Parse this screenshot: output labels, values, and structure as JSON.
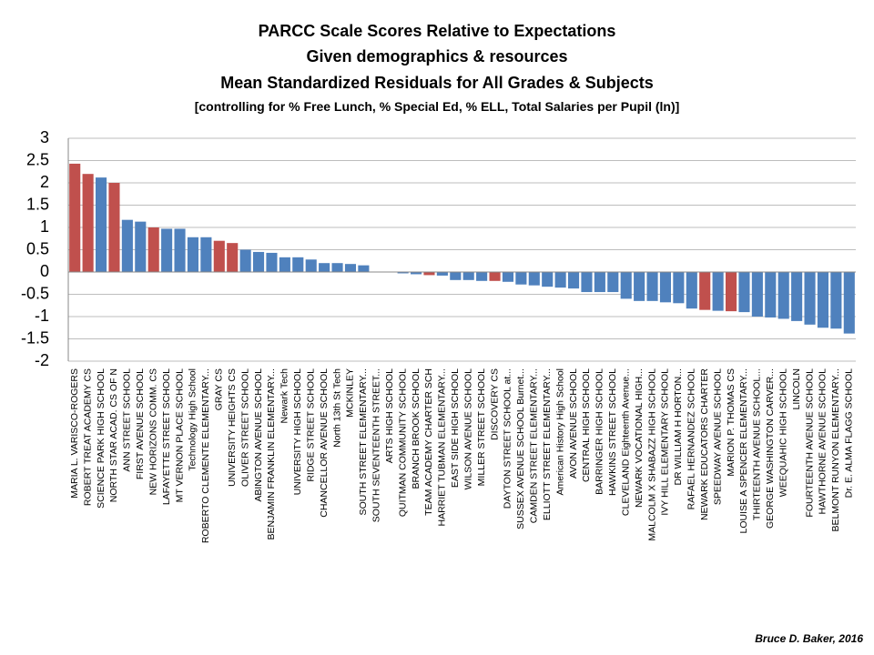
{
  "chart_data": {
    "type": "bar",
    "title_lines": [
      "PARCC Scale Scores Relative to Expectations",
      "Given demographics & resources",
      "Mean Standardized Residuals for All Grades & Subjects",
      "[controlling for % Free Lunch, % Special Ed, % ELL, Total Salaries per Pupil (ln)]"
    ],
    "footer": "Bruce D. Baker, 2016",
    "categories": [
      "MARIA L. VARISCO-ROGERS",
      "ROBERT TREAT ACADEMY CS",
      "SCIENCE PARK HIGH SCHOOL",
      "NORTH STAR ACAD. CS OF N",
      "ANN STREET SCHOOL",
      "FIRST AVENUE SCHOOL",
      "NEW HORIZONS COMM. CS",
      "LAFAYETTE STREET SCHOOL",
      "MT VERNON PLACE SCHOOL",
      "Technology High School",
      "ROBERTO CLEMENTE ELEMENTARY...",
      "GRAY CS",
      "UNIVERSITY HEIGHTS CS",
      "OLIVER STREET SCHOOL",
      "ABINGTON AVENUE SCHOOL",
      "BENJAMIN FRANKLIN ELEMENTARY...",
      "Newark Tech",
      "UNIVERSITY HIGH SCHOOL",
      "RIDGE STREET SCHOOL",
      "CHANCELLOR AVENUE SCHOOL",
      "North 13th St Tech",
      "MCKINLEY",
      "SOUTH STREET ELEMENTARY...",
      "SOUTH SEVENTEENTH STREET...",
      "ARTS HIGH SCHOOL",
      "QUITMAN COMMUNITY SCHOOL",
      "BRANCH BROOK SCHOOL",
      "TEAM ACADEMY CHARTER SCH",
      "HARRIET TUBMAN ELEMENTARY...",
      "EAST SIDE HIGH SCHOOL",
      "WILSON AVENUE SCHOOL",
      "MILLER STREET SCHOOL",
      "DISCOVERY CS",
      "DAYTON STREET SCHOOL at...",
      "SUSSEX AVENUE SCHOOL Burnet...",
      "CAMDEN STREET ELEMENTARY...",
      "ELLIOTT STREET ELEMENTARY...",
      "American History High School",
      "AVON AVENUE SCHOOL",
      "CENTRAL HIGH SCHOOL",
      "BARRINGER HIGH SCHOOL",
      "HAWKINS STREET SCHOOL",
      "CLEVELAND Eighteenth Avenue...",
      "NEWARK VOCATIONAL HIGH...",
      "MALCOLM X SHABAZZ HIGH SCHOOL",
      "IVY HILL ELEMENTARY SCHOOL",
      "DR WILLIAM H HORTON...",
      "RAFAEL HERNANDEZ SCHOOL",
      "NEWARK EDUCATORS CHARTER",
      "SPEEDWAY AVENUE SCHOOL",
      "MARION P. THOMAS CS",
      "LOUISE A SPENCER ELEMENTARY...",
      "THIRTEENTH AVENUE SCHOOL...",
      "GEORGE WASHINGTON CARVER...",
      "WEEQUAHIC HIGH SCHOOL",
      "LINCOLN",
      "FOURTEENTH AVENUE SCHOOL",
      "HAWTHORNE AVENUE SCHOOL",
      "BELMONT RUNYON ELEMENTARY...",
      "Dr. E. ALMA FLAGG SCHOOL"
    ],
    "values": [
      2.43,
      2.2,
      2.12,
      2.0,
      1.17,
      1.13,
      1.0,
      0.97,
      0.97,
      0.78,
      0.78,
      0.7,
      0.65,
      0.5,
      0.45,
      0.43,
      0.33,
      0.33,
      0.28,
      0.2,
      0.2,
      0.18,
      0.15,
      0.01,
      0.0,
      -0.03,
      -0.05,
      -0.07,
      -0.08,
      -0.18,
      -0.18,
      -0.2,
      -0.2,
      -0.22,
      -0.28,
      -0.3,
      -0.33,
      -0.35,
      -0.37,
      -0.45,
      -0.45,
      -0.45,
      -0.6,
      -0.65,
      -0.65,
      -0.68,
      -0.7,
      -0.82,
      -0.85,
      -0.87,
      -0.88,
      -0.9,
      -1.0,
      -1.02,
      -1.05,
      -1.1,
      -1.18,
      -1.25,
      -1.27,
      -1.38
    ],
    "colors": [
      "#c0504d",
      "#c0504d",
      "#4f81bd",
      "#c0504d",
      "#4f81bd",
      "#4f81bd",
      "#c0504d",
      "#4f81bd",
      "#4f81bd",
      "#4f81bd",
      "#4f81bd",
      "#c0504d",
      "#c0504d",
      "#4f81bd",
      "#4f81bd",
      "#4f81bd",
      "#4f81bd",
      "#4f81bd",
      "#4f81bd",
      "#4f81bd",
      "#4f81bd",
      "#4f81bd",
      "#4f81bd",
      "#4f81bd",
      "#4f81bd",
      "#4f81bd",
      "#4f81bd",
      "#c0504d",
      "#4f81bd",
      "#4f81bd",
      "#4f81bd",
      "#4f81bd",
      "#c0504d",
      "#4f81bd",
      "#4f81bd",
      "#4f81bd",
      "#4f81bd",
      "#4f81bd",
      "#4f81bd",
      "#4f81bd",
      "#4f81bd",
      "#4f81bd",
      "#4f81bd",
      "#4f81bd",
      "#4f81bd",
      "#4f81bd",
      "#4f81bd",
      "#4f81bd",
      "#c0504d",
      "#4f81bd",
      "#c0504d",
      "#4f81bd",
      "#4f81bd",
      "#4f81bd",
      "#4f81bd",
      "#4f81bd",
      "#4f81bd",
      "#4f81bd",
      "#4f81bd",
      "#4f81bd"
    ],
    "ylim": [
      -2,
      3
    ],
    "yticks": [
      -2,
      -1.5,
      -1,
      -0.5,
      0,
      0.5,
      1,
      1.5,
      2,
      2.5,
      3
    ],
    "grid": true
  }
}
